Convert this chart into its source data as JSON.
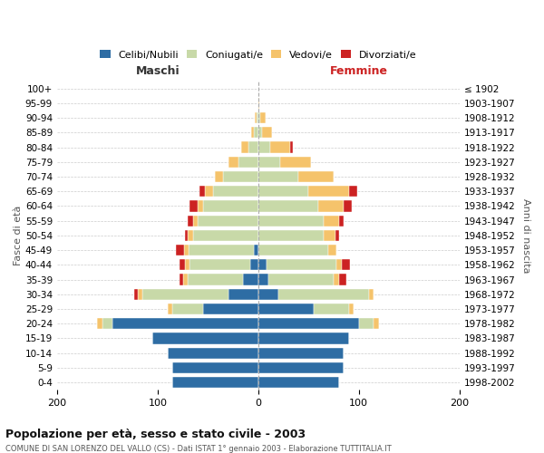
{
  "age_groups": [
    "0-4",
    "5-9",
    "10-14",
    "15-19",
    "20-24",
    "25-29",
    "30-34",
    "35-39",
    "40-44",
    "45-49",
    "50-54",
    "55-59",
    "60-64",
    "65-69",
    "70-74",
    "75-79",
    "80-84",
    "85-89",
    "90-94",
    "95-99",
    "100+"
  ],
  "birth_years": [
    "1998-2002",
    "1993-1997",
    "1988-1992",
    "1983-1987",
    "1978-1982",
    "1973-1977",
    "1968-1972",
    "1963-1967",
    "1958-1962",
    "1953-1957",
    "1948-1952",
    "1943-1947",
    "1938-1942",
    "1933-1937",
    "1928-1932",
    "1923-1927",
    "1918-1922",
    "1913-1917",
    "1908-1912",
    "1903-1907",
    "≤ 1902"
  ],
  "males": {
    "celibi": [
      85,
      85,
      90,
      105,
      145,
      55,
      30,
      15,
      8,
      4,
      0,
      0,
      0,
      0,
      0,
      0,
      0,
      0,
      0,
      0,
      0
    ],
    "coniugati": [
      0,
      0,
      0,
      0,
      10,
      30,
      85,
      55,
      60,
      65,
      65,
      60,
      55,
      45,
      35,
      20,
      10,
      4,
      2,
      0,
      0
    ],
    "vedovi": [
      0,
      0,
      0,
      0,
      5,
      5,
      5,
      5,
      5,
      5,
      5,
      5,
      5,
      8,
      8,
      10,
      7,
      3,
      1,
      0,
      0
    ],
    "divorziati": [
      0,
      0,
      0,
      0,
      0,
      0,
      3,
      3,
      5,
      8,
      3,
      5,
      8,
      5,
      0,
      0,
      0,
      0,
      0,
      0,
      0
    ]
  },
  "females": {
    "nubili": [
      80,
      85,
      85,
      90,
      100,
      55,
      20,
      10,
      8,
      0,
      0,
      0,
      0,
      0,
      0,
      0,
      0,
      0,
      0,
      0,
      0
    ],
    "coniugate": [
      0,
      0,
      0,
      0,
      15,
      35,
      90,
      65,
      70,
      70,
      65,
      65,
      60,
      50,
      40,
      22,
      12,
      4,
      2,
      0,
      0
    ],
    "vedove": [
      0,
      0,
      0,
      0,
      5,
      5,
      5,
      5,
      5,
      8,
      12,
      15,
      25,
      40,
      35,
      30,
      20,
      10,
      5,
      1,
      0
    ],
    "divorziate": [
      0,
      0,
      0,
      0,
      0,
      0,
      0,
      8,
      8,
      0,
      3,
      5,
      8,
      8,
      0,
      0,
      2,
      0,
      0,
      0,
      0
    ]
  },
  "colors": {
    "celibi_nubili": "#2e6da4",
    "coniugati": "#c8d9a8",
    "vedovi": "#f5c36b",
    "divorziati": "#cc2222"
  },
  "xlim": 200,
  "title": "Popolazione per età, sesso e stato civile - 2003",
  "subtitle": "COMUNE DI SAN LORENZO DEL VALLO (CS) - Dati ISTAT 1° gennaio 2003 - Elaborazione TUTTITALIA.IT",
  "ylabel_left": "Fasce di età",
  "ylabel_right": "Anni di nascita",
  "xlabel_left": "Maschi",
  "xlabel_right": "Femmine",
  "legend_labels": [
    "Celibi/Nubili",
    "Coniugati/e",
    "Vedovi/e",
    "Divorziati/e"
  ],
  "background_color": "#ffffff",
  "grid_color": "#cccccc"
}
